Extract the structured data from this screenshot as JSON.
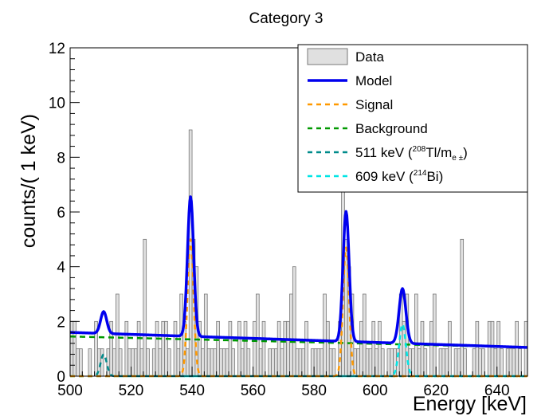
{
  "chart_data": {
    "type": "histogram",
    "title": "Category 3",
    "xlabel": "Energy [keV]",
    "ylabel": "counts/( 1 keV)",
    "xlim": [
      500,
      650
    ],
    "ylim": [
      0,
      12
    ],
    "x_ticks": [
      500,
      520,
      540,
      560,
      580,
      600,
      620,
      640
    ],
    "y_ticks": [
      0,
      2,
      4,
      6,
      8,
      10,
      12
    ],
    "grid": false,
    "legend_position": "top-right",
    "legend": [
      {
        "label": "Data",
        "style": "filled-box",
        "color": "#e0e0e0"
      },
      {
        "label": "Model",
        "style": "solid",
        "color": "#0000ee"
      },
      {
        "label": "Signal",
        "style": "dashed",
        "color": "#ff9900"
      },
      {
        "label": "Background",
        "style": "dashed",
        "color": "#009900"
      },
      {
        "label_main": "511 keV (",
        "label_sup": "208",
        "label_rest": "Tl/m",
        "label_sub": "e ±",
        "label_end": ")",
        "style": "dashed",
        "color": "#008b8b"
      },
      {
        "label_main": "609 keV (",
        "label_sup": "214",
        "label_rest": "Bi)",
        "style": "dashed",
        "color": "#00e5e5"
      }
    ],
    "histogram": {
      "bin_start": 500,
      "bin_width": 1,
      "counts": [
        2,
        2,
        1,
        1,
        0,
        0,
        1,
        0,
        2,
        1,
        1,
        0,
        1,
        2,
        1,
        3,
        1,
        0,
        2,
        1,
        1,
        1,
        2,
        1,
        5,
        1,
        0,
        1,
        2,
        1,
        2,
        2,
        1,
        0,
        2,
        1,
        3,
        2,
        1,
        9,
        5,
        4,
        2,
        1,
        3,
        1,
        1,
        1,
        2,
        1,
        1,
        1,
        2,
        1,
        0,
        2,
        1,
        2,
        1,
        0,
        2,
        3,
        1,
        2,
        0,
        1,
        1,
        1,
        2,
        1,
        2,
        2,
        3,
        4,
        1,
        1,
        1,
        2,
        0,
        1,
        1,
        1,
        1,
        3,
        2,
        1,
        1,
        0,
        2,
        7,
        5,
        4,
        3,
        1,
        1,
        2,
        3,
        1,
        1,
        2,
        1,
        2,
        1,
        0,
        1,
        1,
        1,
        1,
        3,
        2,
        3,
        1,
        1,
        3,
        1,
        2,
        1,
        0,
        2,
        3,
        0,
        1,
        1,
        1,
        2,
        0,
        1,
        1,
        5,
        1,
        0,
        0,
        1,
        2,
        1,
        1,
        0,
        2,
        2,
        1,
        2,
        1,
        0,
        1,
        1,
        1,
        2,
        1,
        0,
        2
      ]
    },
    "series": [
      {
        "name": "Model",
        "type": "peaks",
        "background_at_500": 1.6,
        "background_at_650": 1.05,
        "peaks": [
          {
            "center": 511,
            "height": 0.8,
            "sigma": 1.0
          },
          {
            "center": 539.5,
            "height": 5.1,
            "sigma": 1.0
          },
          {
            "center": 590.5,
            "height": 4.75,
            "sigma": 1.0
          },
          {
            "center": 609,
            "height": 2.0,
            "sigma": 1.1
          }
        ]
      },
      {
        "name": "Signal",
        "peaks": [
          {
            "center": 539.5,
            "height": 5.0,
            "sigma": 1.0
          },
          {
            "center": 590.5,
            "height": 4.7,
            "sigma": 1.0
          }
        ]
      },
      {
        "name": "Background",
        "at_500": 1.45,
        "at_650": 1.05
      },
      {
        "name": "511 keV",
        "peaks": [
          {
            "center": 511,
            "height": 0.8,
            "sigma": 1.0
          }
        ]
      },
      {
        "name": "609 keV",
        "peaks": [
          {
            "center": 609,
            "height": 1.9,
            "sigma": 1.1
          }
        ]
      }
    ]
  }
}
